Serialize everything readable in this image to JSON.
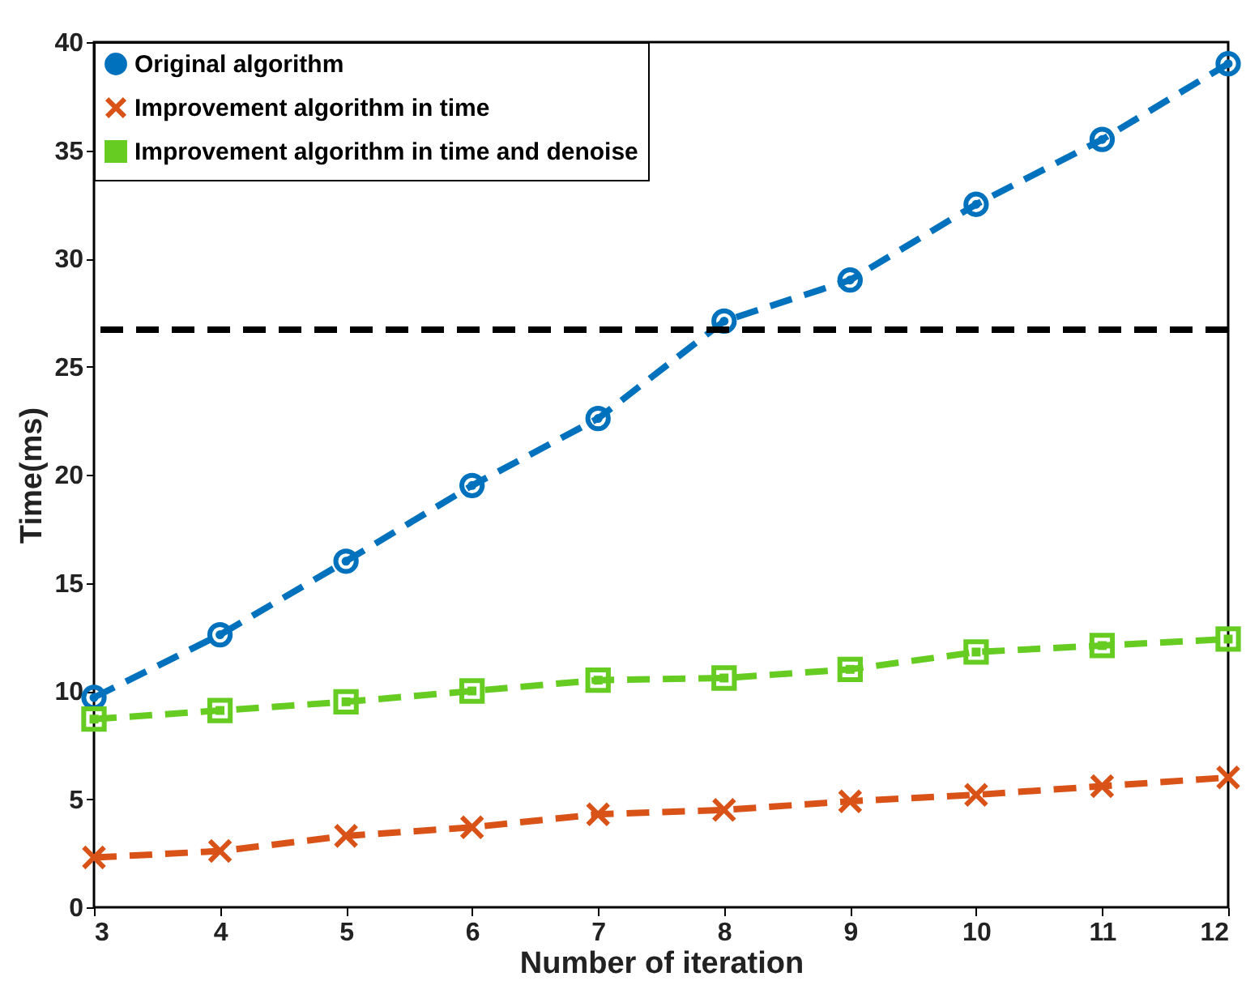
{
  "chart_data": {
    "type": "line",
    "xlabel": "Number of iteration",
    "ylabel": "Time(ms)",
    "x": [
      3,
      4,
      5,
      6,
      7,
      8,
      9,
      10,
      11,
      12
    ],
    "series": [
      {
        "name": "Original algorithm",
        "color": "#0072bd",
        "marker": "circle",
        "values": [
          9.7,
          12.6,
          16.0,
          19.5,
          22.6,
          27.1,
          29.0,
          32.5,
          35.5,
          39.0
        ]
      },
      {
        "name": "Improvement algorithm in time",
        "color": "#d95319",
        "marker": "cross",
        "values": [
          2.3,
          2.6,
          3.3,
          3.7,
          4.3,
          4.5,
          4.9,
          5.2,
          5.6,
          6.0
        ]
      },
      {
        "name": "Improvement algorithm in time and denoise",
        "color": "#66cc22",
        "marker": "square",
        "values": [
          8.7,
          9.1,
          9.5,
          10.0,
          10.5,
          10.6,
          11.0,
          11.8,
          12.1,
          12.4
        ]
      }
    ],
    "xlim": [
      3,
      12
    ],
    "xticks": [
      3,
      4,
      5,
      6,
      7,
      8,
      9,
      10,
      11,
      12
    ],
    "ylim": [
      0,
      40
    ],
    "yticks": [
      0,
      5,
      10,
      15,
      20,
      25,
      30,
      35,
      40
    ],
    "ref_lines": [
      {
        "axis": "y",
        "value": 26.7,
        "color": "#000000",
        "line_style": "dashed"
      }
    ],
    "grid": false,
    "legend": "top left",
    "line_style": "dashed"
  }
}
